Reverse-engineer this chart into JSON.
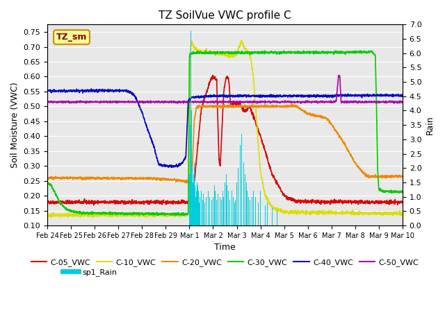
{
  "title": "TZ SoilVue VWC profile C",
  "xlabel": "Time",
  "ylabel_left": "Soil Moisture (VWC)",
  "ylabel_right": "Rain",
  "annotation": "TZ_sm",
  "ylim_left": [
    0.1,
    0.775
  ],
  "ylim_right": [
    0.0,
    7.0
  ],
  "yticks_left": [
    0.1,
    0.15,
    0.2,
    0.25,
    0.3,
    0.35,
    0.4,
    0.45,
    0.5,
    0.55,
    0.6,
    0.65,
    0.7,
    0.75
  ],
  "yticks_right": [
    0.0,
    0.5,
    1.0,
    1.5,
    2.0,
    2.5,
    3.0,
    3.5,
    4.0,
    4.5,
    5.0,
    5.5,
    6.0,
    6.5,
    7.0
  ],
  "xtick_labels": [
    "Feb 24",
    "Feb 25",
    "Feb 26",
    "Feb 27",
    "Feb 28",
    "Feb 29",
    "Mar 1",
    "Mar 2",
    "Mar 3",
    "Mar 4",
    "Mar 5",
    "Mar 6",
    "Mar 7",
    "Mar 8",
    "Mar 9",
    "Mar 10"
  ],
  "colors": {
    "C05": "#dd0000",
    "C10": "#dddd00",
    "C20": "#ee8800",
    "C30": "#00cc00",
    "C40": "#0000cc",
    "C50": "#aa00aa",
    "Rain": "#00ccdd",
    "bg": "#e8e8e8",
    "grid": "#ffffff"
  },
  "legend_entries": [
    "C-05_VWC",
    "C-10_VWC",
    "C-20_VWC",
    "C-30_VWC",
    "C-40_VWC",
    "C-50_VWC",
    "sp1_Rain"
  ]
}
